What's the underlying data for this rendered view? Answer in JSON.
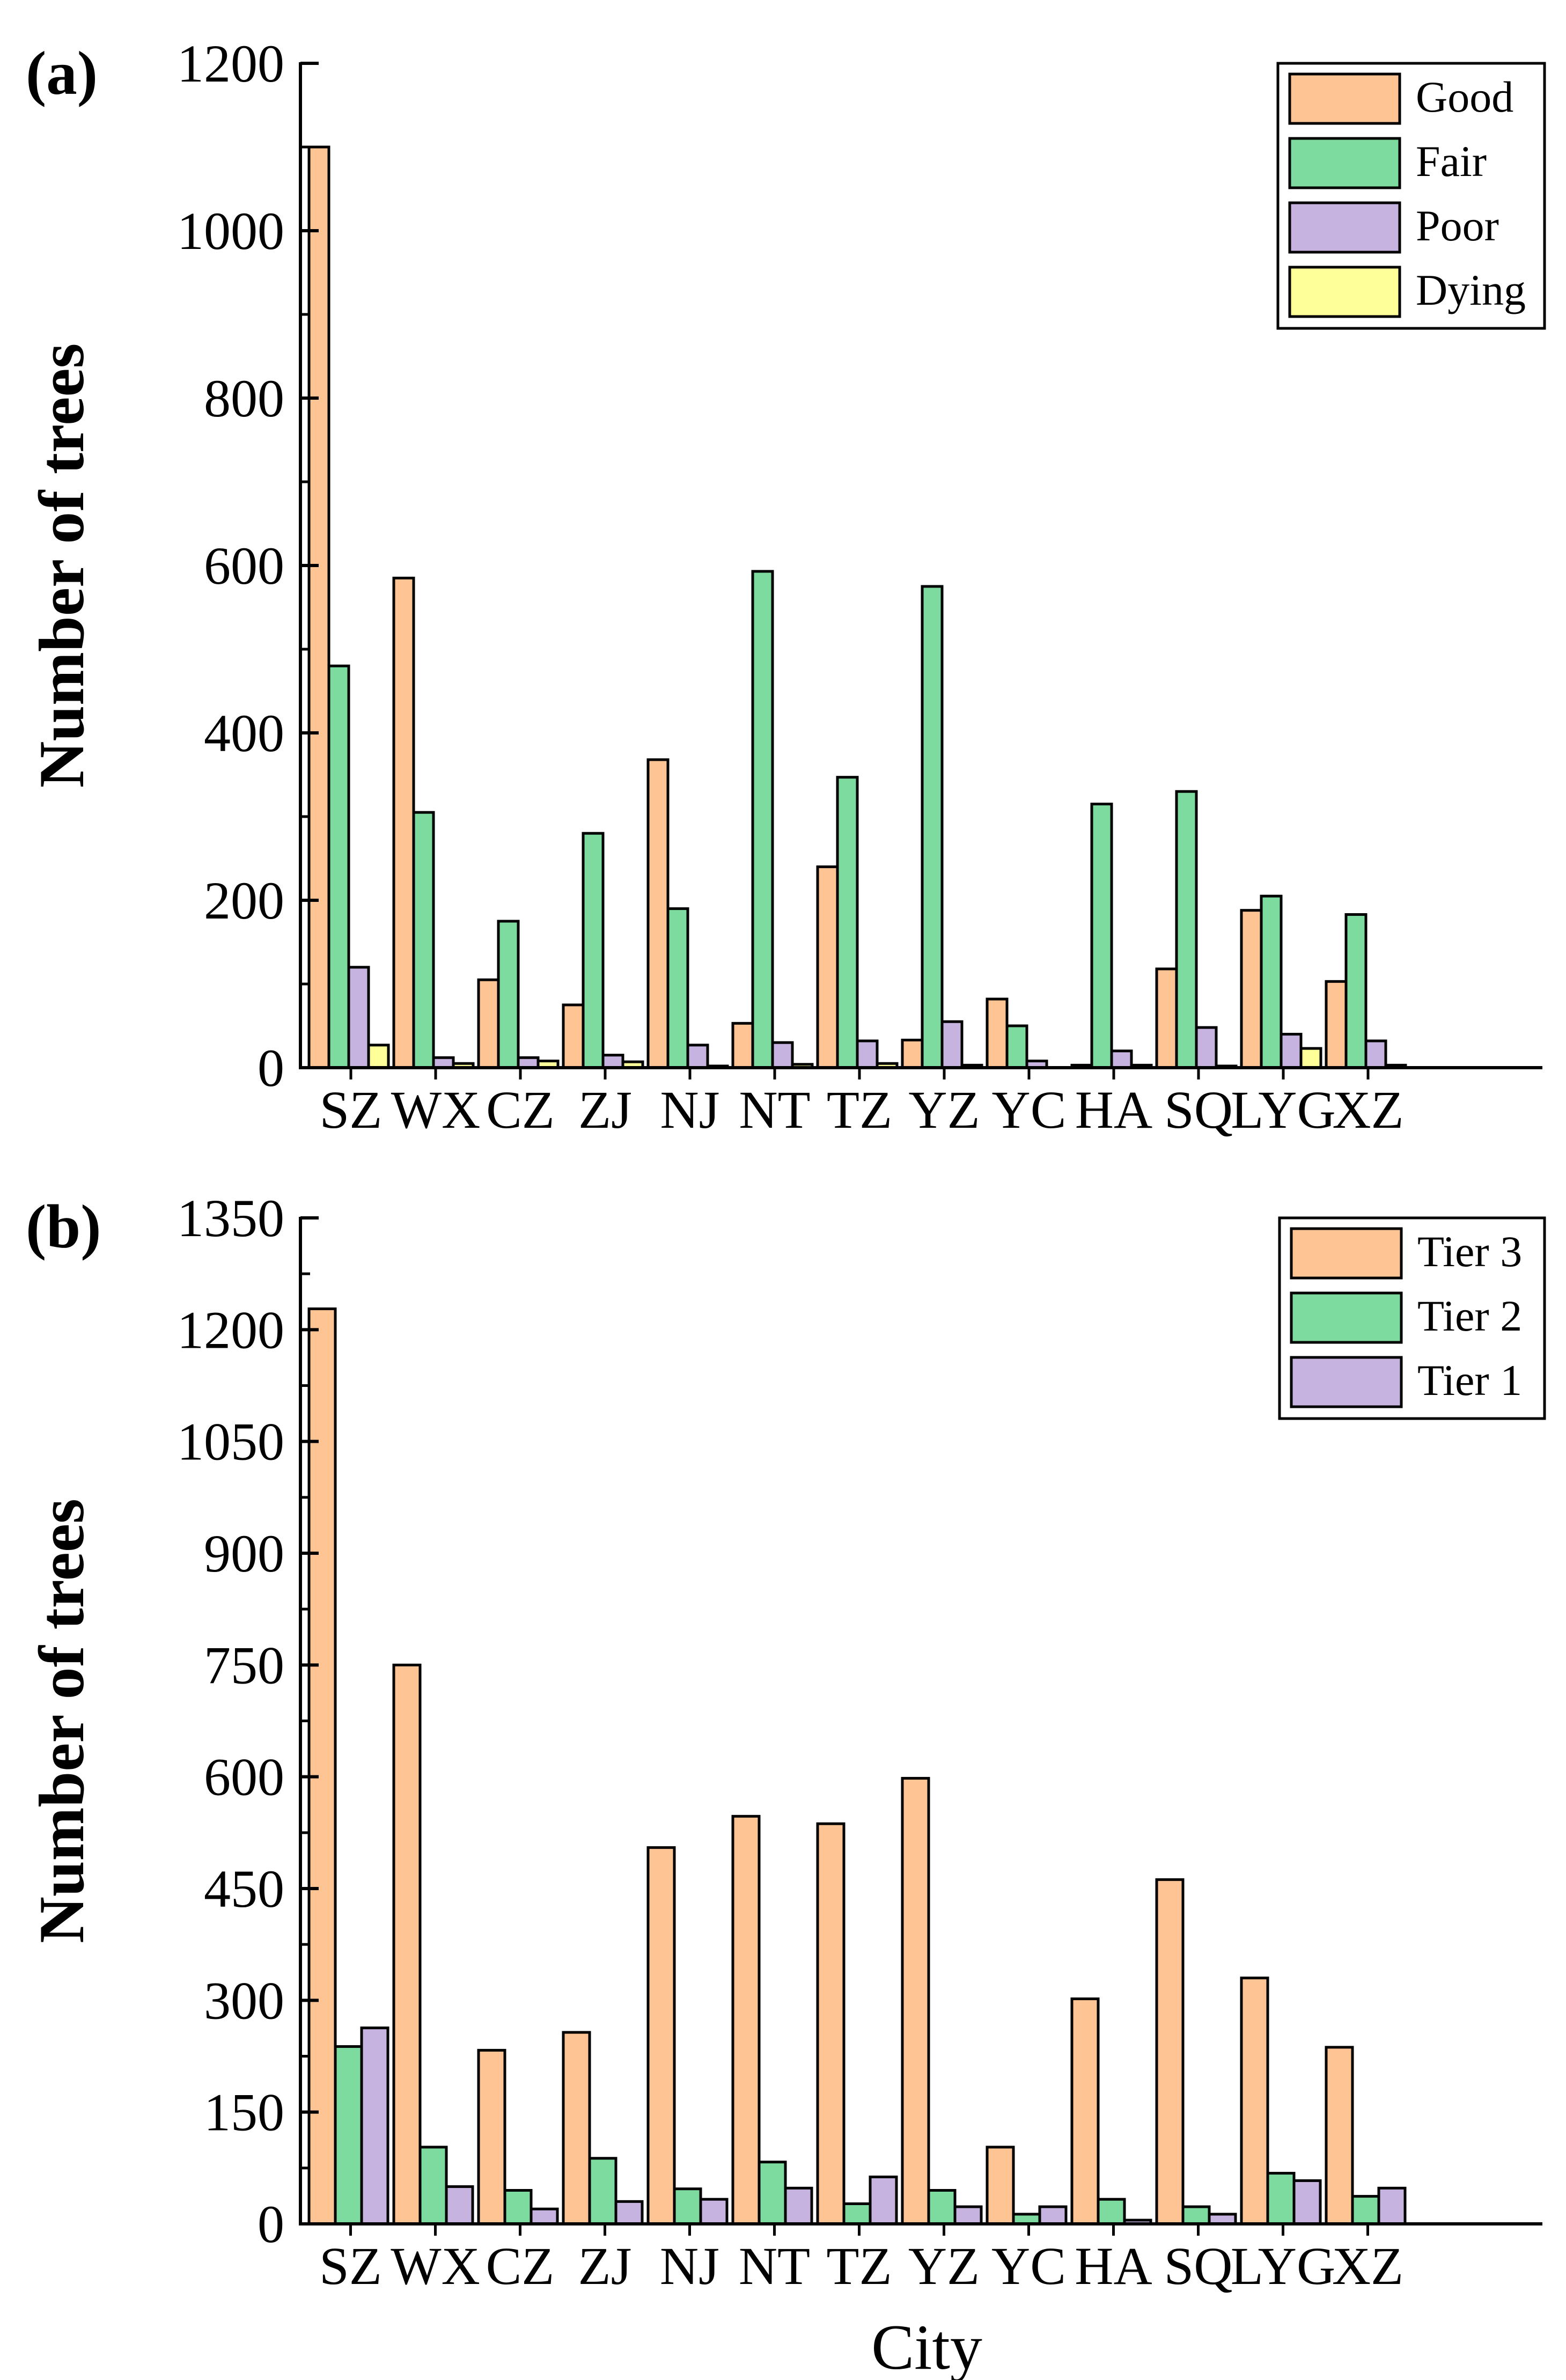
{
  "chart_data": [
    {
      "panel_label": "(a)",
      "type": "bar",
      "xlabel": "",
      "ylabel": "Number of trees",
      "ylim": [
        0,
        1200
      ],
      "y_major_ticks": [
        "0",
        "200",
        "400",
        "600",
        "800",
        "1000",
        "1200"
      ],
      "y_minor_step": 100,
      "categories": [
        "SZ",
        "WX",
        "CZ",
        "ZJ",
        "NJ",
        "NT",
        "TZ",
        "YZ",
        "YC",
        "HA",
        "SQ",
        "LYG",
        "XZ"
      ],
      "legend_position": "top-right",
      "series": [
        {
          "name": "Good",
          "color": "#FFC494",
          "values": [
            1100,
            585,
            105,
            75,
            368,
            53,
            240,
            33,
            82,
            3,
            118,
            188,
            103
          ]
        },
        {
          "name": "Fair",
          "color": "#7EDBA0",
          "values": [
            480,
            305,
            175,
            280,
            190,
            593,
            347,
            575,
            50,
            315,
            330,
            205,
            183
          ]
        },
        {
          "name": "Poor",
          "color": "#C6B3E0",
          "values": [
            120,
            12,
            12,
            15,
            27,
            30,
            32,
            55,
            8,
            20,
            48,
            40,
            32
          ]
        },
        {
          "name": "Dying",
          "color": "#FFFF99",
          "values": [
            27,
            5,
            8,
            7,
            2,
            4,
            5,
            3,
            0,
            3,
            2,
            23,
            3
          ]
        }
      ]
    },
    {
      "panel_label": "(b)",
      "type": "bar",
      "xlabel": "City",
      "ylabel": "Number of trees",
      "ylim": [
        0,
        1350
      ],
      "y_major_ticks": [
        "0",
        "150",
        "300",
        "450",
        "600",
        "750",
        "900",
        "1050",
        "1200",
        "1350"
      ],
      "y_minor_step": 75,
      "categories": [
        "SZ",
        "WX",
        "CZ",
        "ZJ",
        "NJ",
        "NT",
        "TZ",
        "YZ",
        "YC",
        "HA",
        "SQ",
        "LYG",
        "XZ"
      ],
      "legend_position": "top-right",
      "series": [
        {
          "name": "Tier 3",
          "color": "#FFC494",
          "values": [
            1228,
            750,
            233,
            257,
            505,
            547,
            537,
            598,
            103,
            302,
            462,
            330,
            237
          ]
        },
        {
          "name": "Tier 2",
          "color": "#7EDBA0",
          "values": [
            238,
            103,
            45,
            88,
            47,
            83,
            27,
            45,
            13,
            33,
            23,
            68,
            37
          ]
        },
        {
          "name": "Tier 1",
          "color": "#C6B3E0",
          "values": [
            263,
            50,
            20,
            30,
            33,
            48,
            63,
            23,
            23,
            5,
            13,
            58,
            48
          ]
        }
      ]
    }
  ]
}
